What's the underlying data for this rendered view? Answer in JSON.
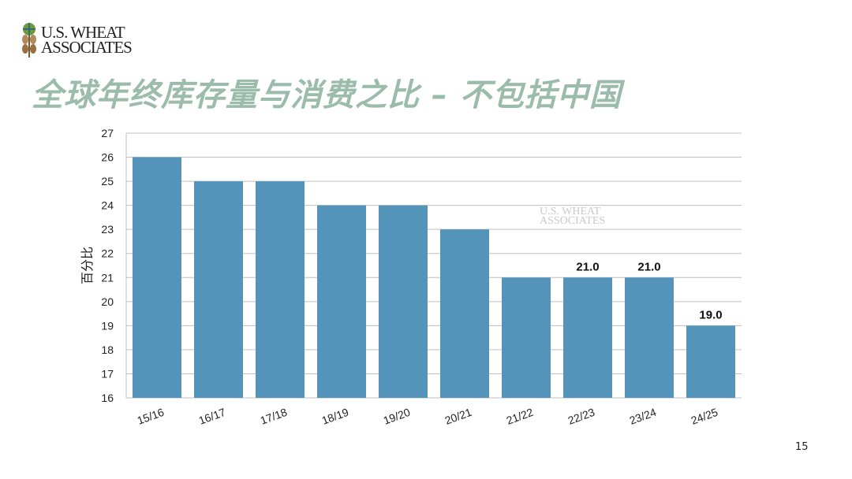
{
  "logo": {
    "line1": "U.S. WHEAT",
    "line2": "ASSOCIATES"
  },
  "title": "全球年终库存量与消费之比 – 不包括中国",
  "page_number": "15",
  "watermark": {
    "line1": "U.S. WHEAT",
    "line2": "ASSOCIATES"
  },
  "colors": {
    "bar": "#5494ba",
    "title": "#9bbcaa",
    "grid": "#bfbfbf"
  },
  "chart_data": {
    "type": "bar",
    "title": "",
    "xlabel": "",
    "ylabel": "百分比",
    "ylim": [
      16,
      27
    ],
    "yticks": [
      "16",
      "17",
      "18",
      "19",
      "20",
      "21",
      "22",
      "23",
      "24",
      "25",
      "26",
      "27"
    ],
    "grid": true,
    "categories": [
      "15/16",
      "16/17",
      "17/18",
      "18/19",
      "19/20",
      "20/21",
      "21/22",
      "22/23",
      "23/24",
      "24/25"
    ],
    "values": [
      26,
      25,
      25,
      24,
      24,
      23,
      21,
      21.0,
      21.0,
      19.0
    ],
    "data_labels": [
      "",
      "",
      "",
      "",
      "",
      "",
      "",
      "21.0",
      "21.0",
      "19.0"
    ]
  }
}
